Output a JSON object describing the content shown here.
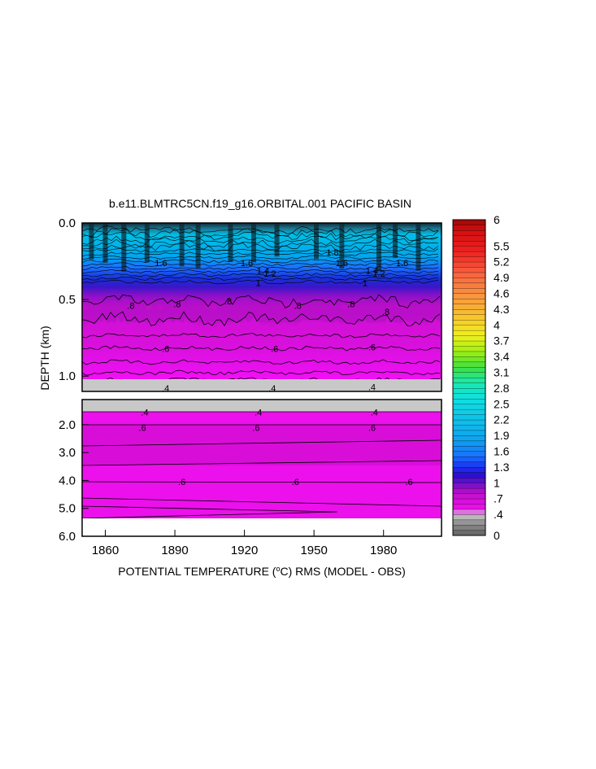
{
  "chart_data": {
    "type": "heatmap",
    "title": "b.e11.BLMTRC5CN.f19_g16.ORBITAL.001 PACIFIC BASIN",
    "xlabel_pre": "POTENTIAL TEMPERATURE (",
    "xlabel_unit": "o",
    "xlabel_post": "C) RMS (MODEL - OBS)",
    "ylabel": "DEPTH (km)",
    "x_range": [
      1850,
      2005
    ],
    "x_ticks": [
      "1860",
      "1890",
      "1920",
      "1950",
      "1980"
    ],
    "x_tick_values": [
      1860,
      1890,
      1920,
      1950,
      1980
    ],
    "upper_panel": {
      "depth_range_km": [
        0.0,
        1.1
      ],
      "y_ticks": [
        "0.0",
        "0.5",
        "1.0"
      ],
      "y_tick_values": [
        0.0,
        0.5,
        1.0
      ]
    },
    "lower_panel": {
      "depth_range_km": [
        1.1,
        6.0
      ],
      "y_ticks": [
        "2.0",
        "3.0",
        "4.0",
        "5.0",
        "6.0"
      ],
      "y_tick_values": [
        2.0,
        3.0,
        4.0,
        5.0,
        6.0
      ]
    },
    "contour_labels": [
      {
        "text": "1.4",
        "x": 1928,
        "depth": 0.31
      },
      {
        "text": "1.2",
        "x": 1931,
        "depth": 0.33
      },
      {
        "text": "1.4",
        "x": 1975,
        "depth": 0.31
      },
      {
        "text": "1.2",
        "x": 1978,
        "depth": 0.33
      },
      {
        "text": "1.6",
        "x": 1884,
        "depth": 0.26
      },
      {
        "text": "1.6",
        "x": 1921,
        "depth": 0.26
      },
      {
        "text": "1.6",
        "x": 1962,
        "depth": 0.26
      },
      {
        "text": "1.6",
        "x": 1988,
        "depth": 0.26
      },
      {
        "text": "1.8",
        "x": 1958,
        "depth": 0.19
      },
      {
        "text": "1",
        "x": 1926,
        "depth": 0.39
      },
      {
        "text": "1",
        "x": 1972,
        "depth": 0.39
      },
      {
        "text": ".8",
        "x": 1871,
        "depth": 0.54
      },
      {
        "text": ".8",
        "x": 1891,
        "depth": 0.53
      },
      {
        "text": ".8",
        "x": 1913,
        "depth": 0.51
      },
      {
        "text": ".8",
        "x": 1943,
        "depth": 0.54
      },
      {
        "text": ".8",
        "x": 1966,
        "depth": 0.53
      },
      {
        "text": ".8",
        "x": 1981,
        "depth": 0.58
      },
      {
        "text": ".6",
        "x": 1886,
        "depth": 0.82
      },
      {
        "text": ".6",
        "x": 1933,
        "depth": 0.82
      },
      {
        "text": ".6",
        "x": 1975,
        "depth": 0.81
      },
      {
        "text": ".4",
        "x": 1886,
        "depth": 1.08
      },
      {
        "text": ".4",
        "x": 1932,
        "depth": 1.08
      },
      {
        "text": ".4",
        "x": 1975,
        "depth": 1.07
      },
      {
        "text": ".4",
        "x": 1877,
        "depth": 1.55
      },
      {
        "text": ".4",
        "x": 1926,
        "depth": 1.55
      },
      {
        "text": ".4",
        "x": 1976,
        "depth": 1.55
      },
      {
        "text": ".6",
        "x": 1876,
        "depth": 2.1
      },
      {
        "text": ".6",
        "x": 1925,
        "depth": 2.1
      },
      {
        "text": ".6",
        "x": 1975,
        "depth": 2.1
      },
      {
        "text": ".6",
        "x": 1893,
        "depth": 4.05
      },
      {
        "text": ".6",
        "x": 1942,
        "depth": 4.05
      },
      {
        "text": ".6",
        "x": 1991,
        "depth": 4.05
      }
    ],
    "colorbar": {
      "range": [
        0,
        6
      ],
      "labels": [
        "6",
        "5.5",
        "5.2",
        "4.9",
        "4.6",
        "4.3",
        "4",
        "3.7",
        "3.4",
        "3.1",
        "2.8",
        "2.5",
        "2.2",
        "1.9",
        "1.6",
        "1.3",
        "1",
        ".7",
        ".4",
        "0"
      ],
      "label_values": [
        6,
        5.5,
        5.2,
        4.9,
        4.6,
        4.3,
        4,
        3.7,
        3.4,
        3.1,
        2.8,
        2.5,
        2.2,
        1.9,
        1.6,
        1.3,
        1,
        0.7,
        0.4,
        0
      ]
    }
  }
}
